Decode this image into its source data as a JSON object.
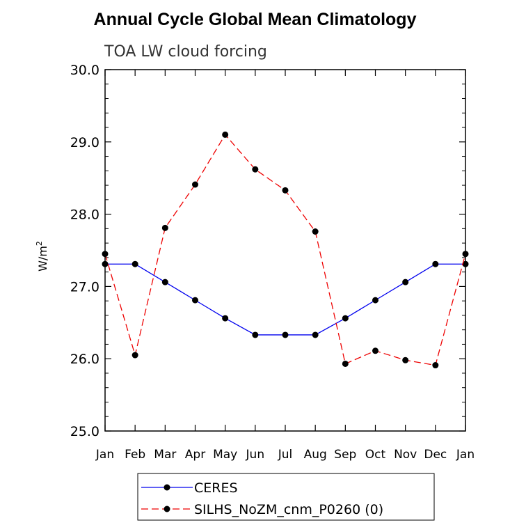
{
  "title": "Annual Cycle Global Mean Climatology",
  "chart_data": {
    "type": "line",
    "title": "Annual Cycle Global Mean Climatology",
    "subtitle": "TOA LW cloud forcing",
    "xlabel": "",
    "ylabel": "W/m",
    "ylabel_superscript": "2",
    "categories": [
      "Jan",
      "Feb",
      "Mar",
      "Apr",
      "May",
      "Jun",
      "Jul",
      "Aug",
      "Sep",
      "Oct",
      "Nov",
      "Dec",
      "Jan"
    ],
    "ylim": [
      25.0,
      30.0
    ],
    "yticks": [
      "25.0",
      "26.0",
      "27.0",
      "28.0",
      "29.0",
      "30.0"
    ],
    "series": [
      {
        "name": "CERES",
        "color": "#0000ee",
        "dash": "solid",
        "values": [
          27.31,
          27.31,
          27.06,
          26.81,
          26.56,
          26.33,
          26.33,
          26.33,
          26.56,
          26.81,
          27.06,
          27.31,
          27.31
        ]
      },
      {
        "name": "SILHS_NoZM_cnm_P0260 (0)",
        "color": "#ee0000",
        "dash": "dashed",
        "values": [
          27.45,
          26.05,
          27.81,
          28.41,
          29.1,
          28.62,
          28.33,
          27.76,
          25.93,
          26.11,
          25.98,
          25.91,
          27.45
        ]
      }
    ],
    "legend_position": "bottom"
  }
}
